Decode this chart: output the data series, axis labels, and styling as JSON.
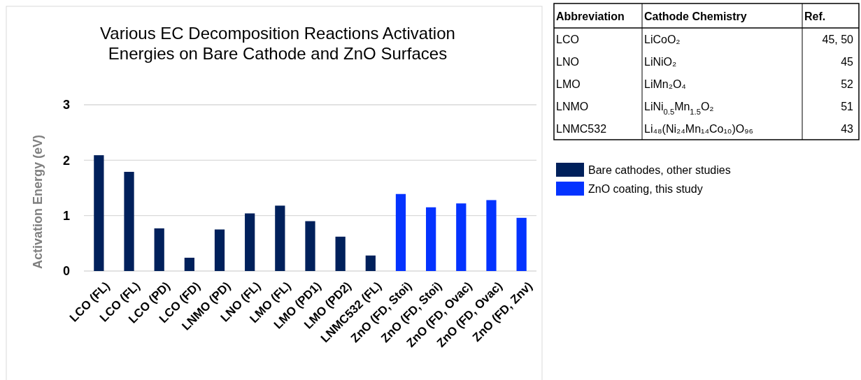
{
  "chart_data": [
    {
      "type": "bar",
      "title": "Various EC Decomposition Reactions Activation Energies on Bare Cathode and ZnO Surfaces",
      "ylabel": "Activation Energy (eV)",
      "categories": [
        "LCO (FL)",
        "LCO (FL)",
        "LCO (PD)",
        "LCO (FD)",
        "LNMO (PD)",
        "LNO (FL)",
        "LMO (FL)",
        "LMO (PD1)",
        "LMO (PD2)",
        "LNMC532 (FL)",
        "ZnO (FD, Stoi)",
        "ZnO (FD, Stoi)",
        "ZnO (FD, Ovac)",
        "ZnO (FD, Ovac)",
        "ZnO (FD, Znv)"
      ],
      "series": [
        {
          "name": "Bare cathodes, other studies",
          "color": "#00205b",
          "values": [
            2.09,
            1.79,
            0.77,
            0.24,
            0.75,
            1.04,
            1.18,
            0.9,
            0.62,
            0.28,
            null,
            null,
            null,
            null,
            null
          ]
        },
        {
          "name": "ZnO coating, this study",
          "color": "#0433ff",
          "values": [
            null,
            null,
            null,
            null,
            null,
            null,
            null,
            null,
            null,
            null,
            1.39,
            1.15,
            1.22,
            1.28,
            0.96
          ]
        }
      ],
      "ylim": [
        0,
        3
      ],
      "yticks": [
        0,
        1,
        2,
        3
      ],
      "grid": "y",
      "legend": "right"
    },
    {
      "type": "other",
      "categories": [
        "Abbreviation",
        "Cathode Chemistry",
        "Ref."
      ],
      "annotations": [
        "LCO",
        "LiCoO₂",
        "45, 50",
        "LNO",
        "LiNiO₂",
        "45",
        "LMO",
        "LiMn₂O₄",
        "52",
        "LNMO",
        "LiNi$_{0.5}$Mn$_{1.5}$O₂",
        "51",
        "LNMC532",
        "Li₄₈(Ni₂₄Mn₁₄Co₁₀)O₉₆",
        "43"
      ]
    }
  ]
}
